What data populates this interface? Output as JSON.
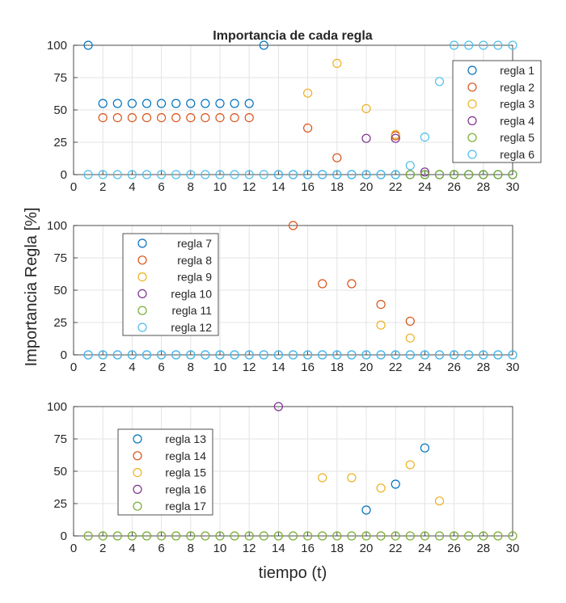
{
  "figure": {
    "title": "Importancia de cada regla",
    "ylabel": "Importancia Regla [%]",
    "xlabel": "tiempo (t)"
  },
  "chart_data": [
    {
      "type": "scatter",
      "title": "Importancia de cada regla",
      "xlim": [
        0,
        30
      ],
      "ylim": [
        0,
        100
      ],
      "xticks": [
        0,
        2,
        4,
        6,
        8,
        10,
        12,
        14,
        16,
        18,
        20,
        22,
        24,
        26,
        28,
        30
      ],
      "yticks": [
        0,
        25,
        50,
        75,
        100
      ],
      "grid": true,
      "legend_position": "top-right",
      "series": [
        {
          "name": "regla 1",
          "color": "#0072BD",
          "x": [
            1,
            2,
            3,
            4,
            5,
            6,
            7,
            8,
            9,
            10,
            11,
            12,
            13,
            14,
            15,
            16,
            17,
            18,
            19,
            20,
            21,
            22,
            23,
            24,
            25,
            26,
            27,
            28,
            29,
            30
          ],
          "y": [
            100,
            55,
            55,
            55,
            55,
            55,
            55,
            55,
            55,
            55,
            55,
            55,
            100,
            0,
            0,
            0,
            0,
            0,
            0,
            0,
            0,
            0,
            0,
            0,
            0,
            0,
            0,
            0,
            0,
            0
          ]
        },
        {
          "name": "regla 2",
          "color": "#D95319",
          "x": [
            2,
            3,
            4,
            5,
            6,
            7,
            8,
            9,
            10,
            11,
            12,
            16,
            18,
            22
          ],
          "y": [
            44,
            44,
            44,
            44,
            44,
            44,
            44,
            44,
            44,
            44,
            44,
            36,
            13,
            30
          ]
        },
        {
          "name": "regla 3",
          "color": "#EDB120",
          "x": [
            16,
            18,
            20,
            22
          ],
          "y": [
            63,
            86,
            51,
            31
          ]
        },
        {
          "name": "regla 4",
          "color": "#7E2F8E",
          "x": [
            20,
            22,
            24
          ],
          "y": [
            28,
            28,
            2
          ]
        },
        {
          "name": "regla 5",
          "color": "#77AC30",
          "x": [
            23,
            24,
            25,
            26,
            27,
            28,
            29,
            30
          ],
          "y": [
            0,
            0,
            0,
            0,
            0,
            0,
            0,
            0
          ]
        },
        {
          "name": "regla 6",
          "color": "#4DBEEE",
          "x": [
            1,
            2,
            3,
            4,
            5,
            6,
            7,
            8,
            9,
            10,
            11,
            12,
            13,
            14,
            15,
            16,
            17,
            18,
            19,
            20,
            21,
            22,
            23,
            24,
            25,
            26,
            27,
            28,
            29,
            30
          ],
          "y": [
            0,
            0,
            0,
            0,
            0,
            0,
            0,
            0,
            0,
            0,
            0,
            0,
            0,
            0,
            0,
            0,
            0,
            0,
            0,
            0,
            0,
            0,
            7,
            29,
            72,
            100,
            100,
            100,
            100,
            100
          ]
        }
      ]
    },
    {
      "type": "scatter",
      "xlim": [
        0,
        30
      ],
      "ylim": [
        0,
        100
      ],
      "xticks": [
        0,
        2,
        4,
        6,
        8,
        10,
        12,
        14,
        16,
        18,
        20,
        22,
        24,
        26,
        28,
        30
      ],
      "yticks": [
        0,
        25,
        50,
        75,
        100
      ],
      "grid": true,
      "legend_position": "top-left",
      "series": [
        {
          "name": "regla 7",
          "color": "#0072BD",
          "x": [
            1,
            2,
            3,
            4,
            5,
            6,
            7,
            8,
            9,
            10,
            11,
            12,
            13,
            14,
            15,
            16,
            17,
            18,
            19,
            20,
            21,
            22,
            23,
            24,
            25,
            26,
            27,
            28,
            29,
            30
          ],
          "y": [
            0,
            0,
            0,
            0,
            0,
            0,
            0,
            0,
            0,
            0,
            0,
            0,
            0,
            0,
            0,
            0,
            0,
            0,
            0,
            0,
            0,
            0,
            0,
            0,
            0,
            0,
            0,
            0,
            0,
            0
          ]
        },
        {
          "name": "regla 8",
          "color": "#D95319",
          "x": [
            15,
            17,
            19,
            21,
            23
          ],
          "y": [
            100,
            55,
            55,
            39,
            26
          ]
        },
        {
          "name": "regla 9",
          "color": "#EDB120",
          "x": [
            21,
            23
          ],
          "y": [
            23,
            13
          ]
        },
        {
          "name": "regla 10",
          "color": "#7E2F8E",
          "x": [],
          "y": []
        },
        {
          "name": "regla 11",
          "color": "#77AC30",
          "x": [],
          "y": []
        },
        {
          "name": "regla 12",
          "color": "#4DBEEE",
          "x": [
            1,
            2,
            3,
            4,
            5,
            6,
            7,
            8,
            9,
            10,
            11,
            12,
            13,
            14,
            15,
            16,
            17,
            18,
            19,
            20,
            21,
            22,
            23,
            24,
            25,
            26,
            27,
            28,
            29,
            30
          ],
          "y": [
            0,
            0,
            0,
            0,
            0,
            0,
            0,
            0,
            0,
            0,
            0,
            0,
            0,
            0,
            0,
            0,
            0,
            0,
            0,
            0,
            0,
            0,
            0,
            0,
            0,
            0,
            0,
            0,
            0,
            0
          ]
        }
      ]
    },
    {
      "type": "scatter",
      "xlabel": "tiempo (t)",
      "xlim": [
        0,
        30
      ],
      "ylim": [
        0,
        100
      ],
      "xticks": [
        0,
        2,
        4,
        6,
        8,
        10,
        12,
        14,
        16,
        18,
        20,
        22,
        24,
        26,
        28,
        30
      ],
      "yticks": [
        0,
        25,
        50,
        75,
        100
      ],
      "grid": true,
      "legend_position": "top-left",
      "series": [
        {
          "name": "regla 13",
          "color": "#0072BD",
          "x": [
            20,
            22,
            24
          ],
          "y": [
            20,
            40,
            68
          ]
        },
        {
          "name": "regla 14",
          "color": "#D95319",
          "x": [],
          "y": []
        },
        {
          "name": "regla 15",
          "color": "#EDB120",
          "x": [
            17,
            19,
            21,
            23,
            25
          ],
          "y": [
            45,
            45,
            37,
            55,
            27
          ]
        },
        {
          "name": "regla 16",
          "color": "#7E2F8E",
          "x": [
            14
          ],
          "y": [
            100
          ]
        },
        {
          "name": "regla 17",
          "color": "#77AC30",
          "x": [
            1,
            2,
            3,
            4,
            5,
            6,
            7,
            8,
            9,
            10,
            11,
            12,
            13,
            14,
            15,
            16,
            17,
            18,
            19,
            20,
            21,
            22,
            23,
            24,
            25,
            26,
            27,
            28,
            29,
            30
          ],
          "y": [
            0,
            0,
            0,
            0,
            0,
            0,
            0,
            0,
            0,
            0,
            0,
            0,
            0,
            0,
            0,
            0,
            0,
            0,
            0,
            0,
            0,
            0,
            0,
            0,
            0,
            0,
            0,
            0,
            0,
            0
          ]
        }
      ]
    }
  ]
}
